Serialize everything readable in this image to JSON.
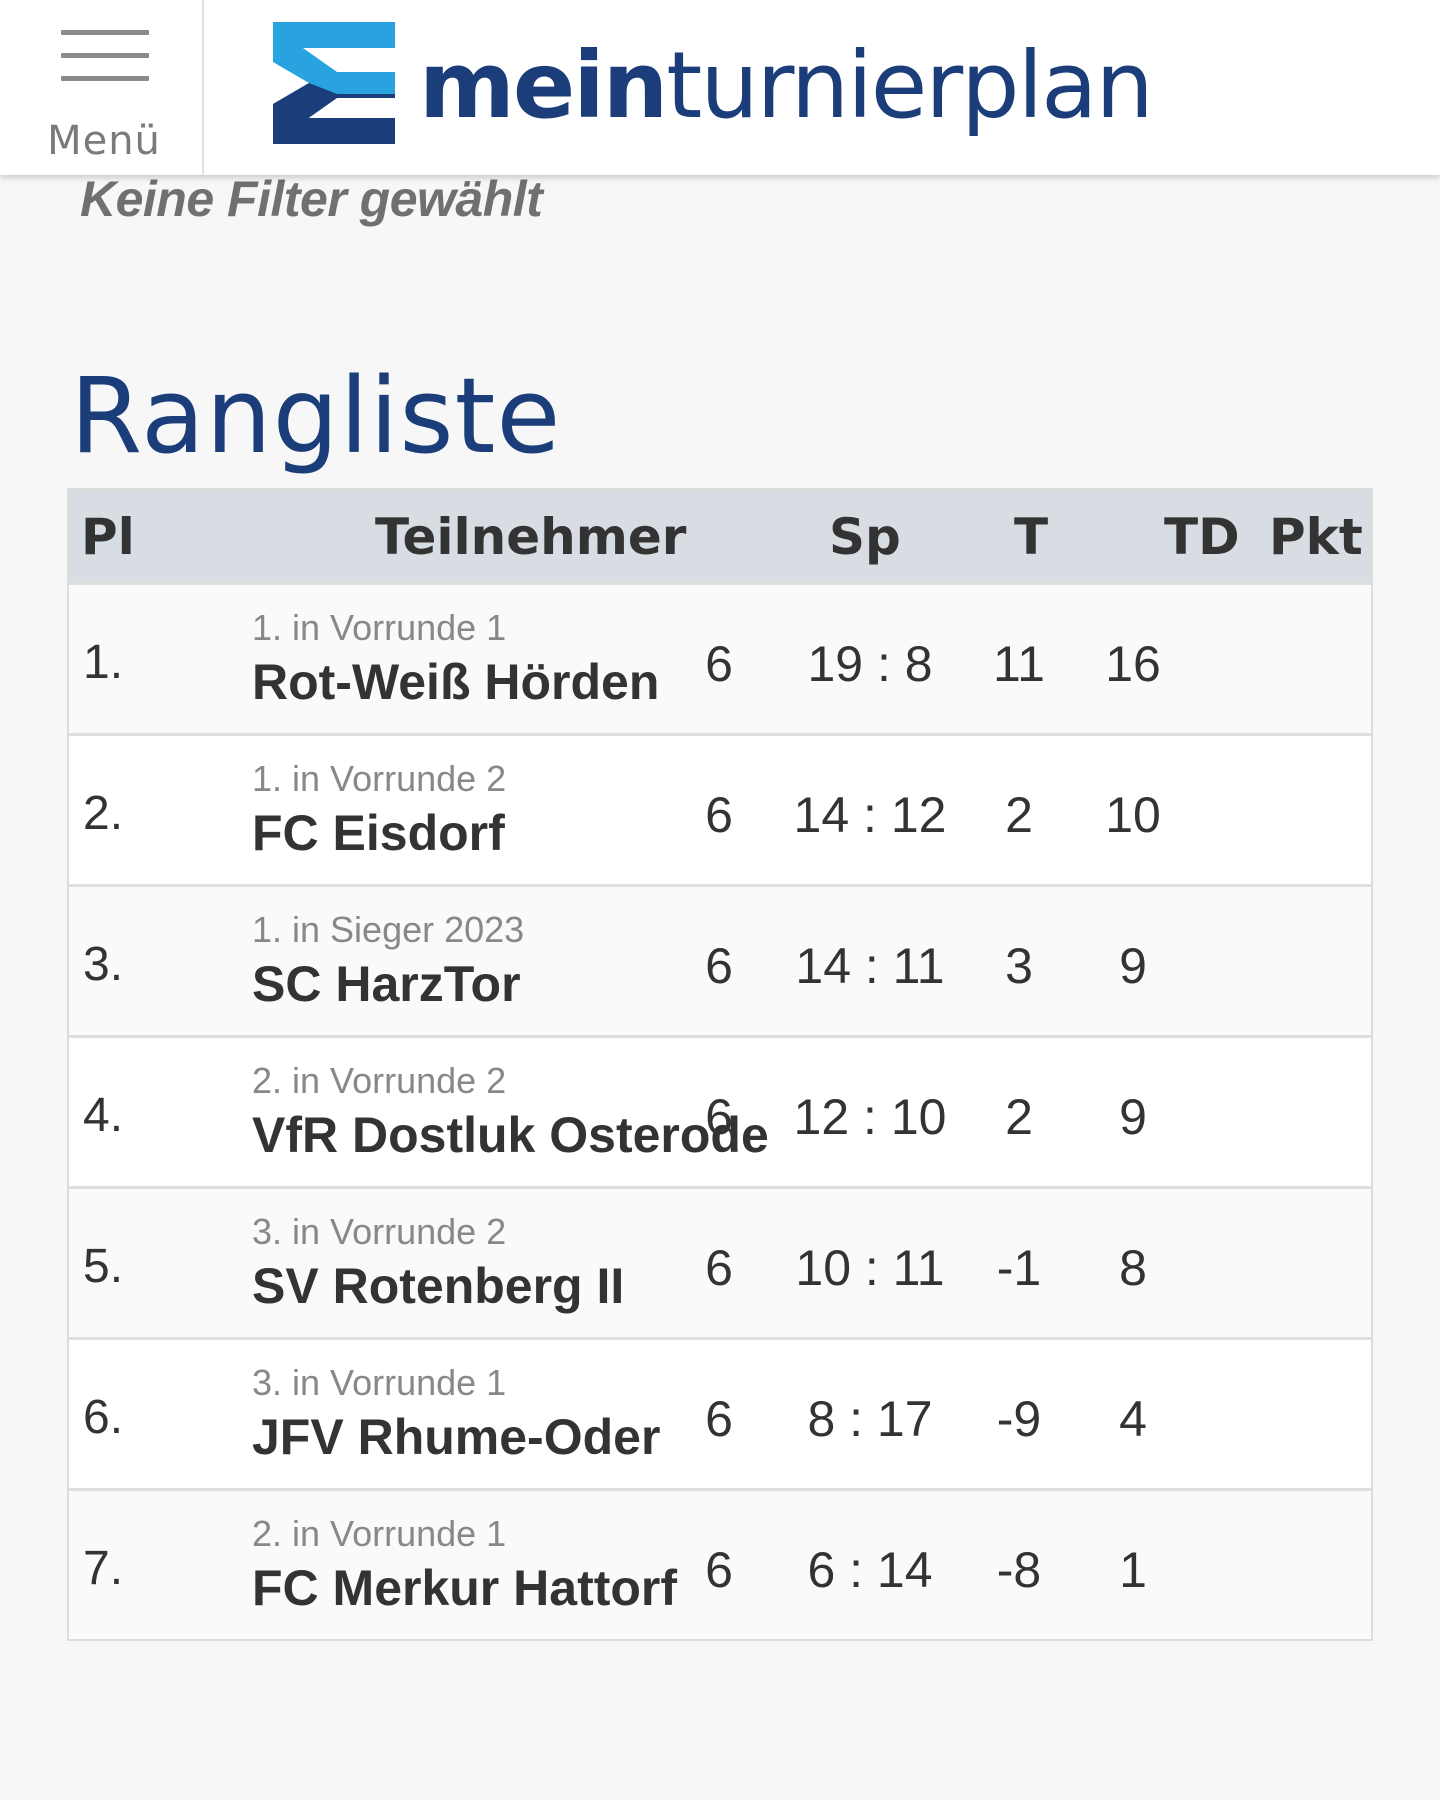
{
  "header": {
    "menu_label": "Menü",
    "brand_bold": "mein",
    "brand_regular": "turnierplan",
    "brand_colors": {
      "light": "#29a3e0",
      "dark": "#1b3d7a"
    }
  },
  "filter_note": "Keine Filter gewählt",
  "page_title": "Rangliste",
  "table": {
    "headers": {
      "rank": "Pl",
      "team": "Teilnehmer",
      "games": "Sp",
      "goals": "T",
      "diff": "TD",
      "points": "Pkt"
    },
    "rows": [
      {
        "rank": "1.",
        "sub": "1. in Vorrunde 1",
        "team": "Rot-Weiß Hörden",
        "games": "6",
        "goals": "19 : 8",
        "diff": "11",
        "points": "16"
      },
      {
        "rank": "2.",
        "sub": "1. in Vorrunde 2",
        "team": "FC Eisdorf",
        "games": "6",
        "goals": "14 : 12",
        "diff": "2",
        "points": "10"
      },
      {
        "rank": "3.",
        "sub": "1. in Sieger 2023",
        "team": "SC HarzTor",
        "games": "6",
        "goals": "14 : 11",
        "diff": "3",
        "points": "9"
      },
      {
        "rank": "4.",
        "sub": "2. in Vorrunde 2",
        "team": "VfR Dostluk Osterode",
        "games": "6",
        "goals": "12 : 10",
        "diff": "2",
        "points": "9"
      },
      {
        "rank": "5.",
        "sub": "3. in Vorrunde 2",
        "team": "SV Rotenberg II",
        "games": "6",
        "goals": "10 : 11",
        "diff": "-1",
        "points": "8"
      },
      {
        "rank": "6.",
        "sub": "3. in Vorrunde 1",
        "team": "JFV Rhume-Oder",
        "games": "6",
        "goals": "8 : 17",
        "diff": "-9",
        "points": "4"
      },
      {
        "rank": "7.",
        "sub": "2. in Vorrunde 1",
        "team": "FC Merkur Hattorf",
        "games": "6",
        "goals": "6 : 14",
        "diff": "-8",
        "points": "1"
      }
    ]
  }
}
